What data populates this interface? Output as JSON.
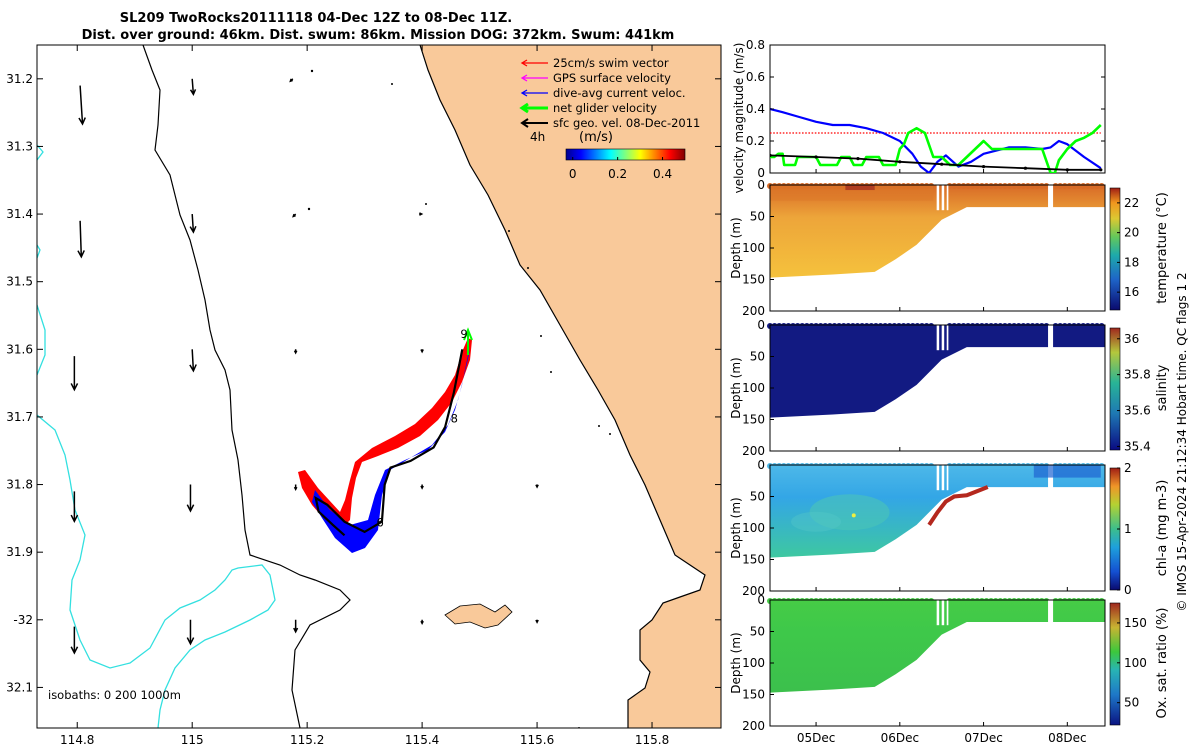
{
  "title": {
    "line1": "SL209 TwoRocks20111118 04-Dec 12Z to 08-Dec 11Z.",
    "line2": "Dist. over ground: 46km. Dist. swum: 86km. Mission DOG: 372km. Swum: 441km"
  },
  "credit": "© IMOS 15-Apr-2024 21:12:34 Hobart time. QC flags 1  2",
  "colors": {
    "land": "#f9c99a",
    "isobath_0": "#000000",
    "isobath_200": "#000000",
    "isobath_1000": "#33e0e0",
    "swim": "#ff0000",
    "gps": "#ff00ff",
    "dive_avg": "#0000ff",
    "net_glider": "#00ff00",
    "sfc_geo": "#000000"
  },
  "chart_data": [
    {
      "type": "map",
      "name": "track-map",
      "xlim": [
        114.73,
        115.92
      ],
      "ylim": [
        -32.16,
        -31.15
      ],
      "xticks": [
        114.8,
        115.0,
        115.2,
        115.4,
        115.6,
        115.8
      ],
      "xtick_labels": [
        "114.8",
        "115",
        "115.2",
        "115.4",
        "115.6",
        "115.8"
      ],
      "yticks": [
        -31.2,
        -31.3,
        -31.4,
        -31.5,
        -31.6,
        -31.7,
        -31.8,
        -31.9,
        -32.0,
        -32.1
      ],
      "ytick_labels": [
        "31.2",
        "31.3",
        "31.4",
        "31.5",
        "31.6",
        "31.7",
        "31.8",
        "31.9",
        "-32",
        "32.1"
      ],
      "legend": {
        "location": "top-right",
        "entries": [
          "25cm/s swim vector",
          "GPS surface velocity",
          "dive-avg current veloc.",
          "net glider velocity",
          "sfc geo. vel. 08-Dec-2011"
        ]
      },
      "colorbar": {
        "prefix": "4h",
        "label": "(m/s)",
        "ticks": [
          0,
          0.2,
          0.4
        ],
        "tick_labels": [
          "0",
          "0.2",
          "0.4"
        ],
        "range": [
          -0.03,
          0.5
        ]
      },
      "isobath_note": "isobaths: 0   200  1000m",
      "track": [
        [
          115.265,
          -31.875
        ],
        [
          115.245,
          -31.86
        ],
        [
          115.22,
          -31.84
        ],
        [
          115.215,
          -31.82
        ],
        [
          115.235,
          -31.83
        ],
        [
          115.265,
          -31.855
        ],
        [
          115.3,
          -31.87
        ],
        [
          115.33,
          -31.855
        ],
        [
          115.335,
          -31.8
        ],
        [
          115.345,
          -31.775
        ],
        [
          115.38,
          -31.765
        ],
        [
          115.42,
          -31.745
        ],
        [
          115.44,
          -31.715
        ],
        [
          115.455,
          -31.665
        ],
        [
          115.47,
          -31.6
        ]
      ],
      "day_labels": [
        {
          "text": "9",
          "lon": 115.473,
          "lat": -31.583
        },
        {
          "text": "8",
          "lon": 115.456,
          "lat": -31.708
        },
        {
          "text": "6",
          "lon": 115.327,
          "lat": -31.862
        }
      ],
      "geo_vectors": [
        {
          "lon": 114.805,
          "lat": -31.21,
          "u": 0.02,
          "v": -0.32
        },
        {
          "lon": 114.805,
          "lat": -31.41,
          "u": 0.01,
          "v": -0.3
        },
        {
          "lon": 114.795,
          "lat": -31.61,
          "u": 0.0,
          "v": -0.28
        },
        {
          "lon": 114.795,
          "lat": -31.81,
          "u": 0.0,
          "v": -0.25
        },
        {
          "lon": 114.795,
          "lat": -32.01,
          "u": 0.0,
          "v": -0.22
        },
        {
          "lon": 115.0,
          "lat": -31.2,
          "u": 0.01,
          "v": -0.13
        },
        {
          "lon": 115.0,
          "lat": -31.4,
          "u": 0.01,
          "v": -0.15
        },
        {
          "lon": 115.0,
          "lat": -31.6,
          "u": 0.01,
          "v": -0.18
        },
        {
          "lon": 114.997,
          "lat": -31.8,
          "u": 0.0,
          "v": -0.22
        },
        {
          "lon": 114.997,
          "lat": -32.0,
          "u": 0.0,
          "v": -0.2
        },
        {
          "lon": 115.175,
          "lat": -31.2,
          "u": -0.02,
          "v": -0.02
        },
        {
          "lon": 115.18,
          "lat": -31.4,
          "u": -0.02,
          "v": -0.02
        },
        {
          "lon": 115.18,
          "lat": -31.6,
          "u": 0.0,
          "v": -0.03
        },
        {
          "lon": 115.18,
          "lat": -31.8,
          "u": 0.0,
          "v": -0.04
        },
        {
          "lon": 115.18,
          "lat": -32.0,
          "u": 0.0,
          "v": -0.1
        },
        {
          "lon": 115.395,
          "lat": -31.4,
          "u": 0.02,
          "v": 0.0
        },
        {
          "lon": 115.4,
          "lat": -31.6,
          "u": 0.0,
          "v": -0.02
        },
        {
          "lon": 115.4,
          "lat": -31.8,
          "u": 0.0,
          "v": -0.03
        },
        {
          "lon": 115.4,
          "lat": -32.0,
          "u": 0.0,
          "v": -0.03
        },
        {
          "lon": 115.6,
          "lat": -31.8,
          "u": 0.0,
          "v": -0.02
        },
        {
          "lon": 115.6,
          "lat": -32.0,
          "u": 0.0,
          "v": -0.02
        }
      ]
    },
    {
      "type": "line",
      "name": "velocity-magnitude",
      "ylabel": "velocity magnitude (m/s)",
      "xlim": [
        4.45,
        8.45
      ],
      "ylim": [
        0,
        0.8
      ],
      "yticks": [
        0,
        0.2,
        0.4,
        0.6,
        0.8
      ],
      "ytick_labels": [
        "0",
        "0.2",
        "0.4",
        "0.6",
        "0.8"
      ],
      "series": [
        {
          "name": "swim",
          "style": "dotted",
          "x": [
            4.45,
            8.4
          ],
          "y": [
            0.25,
            0.25
          ]
        },
        {
          "name": "dive-avg current",
          "x": [
            4.45,
            4.6,
            4.8,
            5.0,
            5.2,
            5.4,
            5.6,
            5.8,
            6.0,
            6.15,
            6.25,
            6.35,
            6.45,
            6.55,
            6.7,
            6.85,
            7.0,
            7.3,
            7.5,
            7.7,
            7.8,
            7.9,
            8.0,
            8.2,
            8.4
          ],
          "y": [
            0.4,
            0.38,
            0.35,
            0.32,
            0.3,
            0.3,
            0.28,
            0.25,
            0.2,
            0.12,
            0.04,
            0.0,
            0.07,
            0.11,
            0.04,
            0.07,
            0.12,
            0.16,
            0.16,
            0.15,
            0.16,
            0.2,
            0.18,
            0.1,
            0.03
          ]
        },
        {
          "name": "net glider",
          "x": [
            4.45,
            4.5,
            4.55,
            4.6,
            4.62,
            4.75,
            4.78,
            5.0,
            5.05,
            5.25,
            5.3,
            5.4,
            5.45,
            5.55,
            5.6,
            5.75,
            5.8,
            5.95,
            6.0,
            6.05,
            6.1,
            6.2,
            6.3,
            6.4,
            6.5,
            6.6,
            6.7,
            6.8,
            6.9,
            7.0,
            7.1,
            7.3,
            7.5,
            7.7,
            7.8,
            7.85,
            7.9,
            8.0,
            8.1,
            8.2,
            8.3,
            8.4
          ],
          "y": [
            0.1,
            0.1,
            0.12,
            0.12,
            0.05,
            0.05,
            0.1,
            0.1,
            0.05,
            0.05,
            0.1,
            0.1,
            0.05,
            0.05,
            0.1,
            0.1,
            0.05,
            0.05,
            0.15,
            0.18,
            0.25,
            0.28,
            0.25,
            0.1,
            0.1,
            0.05,
            0.05,
            0.1,
            0.15,
            0.2,
            0.15,
            0.15,
            0.15,
            0.15,
            0.0,
            0.0,
            0.08,
            0.15,
            0.2,
            0.22,
            0.25,
            0.3
          ]
        },
        {
          "name": "surface geostrophic",
          "x": [
            4.45,
            5.0,
            5.5,
            6.0,
            6.5,
            7.0,
            7.5,
            8.0,
            8.4
          ],
          "y": [
            0.11,
            0.1,
            0.09,
            0.07,
            0.055,
            0.04,
            0.03,
            0.02,
            0.02
          ]
        }
      ]
    },
    {
      "type": "heatmap",
      "name": "temperature-section",
      "ylabel": "Depth (m)",
      "cblabel": "temperature (°C)",
      "xlim": [
        4.45,
        8.45
      ],
      "ylim": [
        200,
        0
      ],
      "yticks": [
        0,
        50,
        100,
        150,
        200
      ],
      "ytick_labels": [
        "0",
        "50",
        "100",
        "150",
        "200"
      ],
      "clim": [
        14.8,
        23.0
      ],
      "cticks": [
        16,
        18,
        20,
        22
      ],
      "ctick_labels": [
        "16",
        "18",
        "20",
        "22"
      ],
      "bottom_depth": [
        [
          4.45,
          147
        ],
        [
          5.2,
          142
        ],
        [
          5.7,
          138
        ],
        [
          5.95,
          118
        ],
        [
          6.2,
          95
        ],
        [
          6.5,
          55
        ],
        [
          6.8,
          35
        ],
        [
          8.45,
          35
        ]
      ],
      "surface_value": 21.5,
      "deep_value": 19.2
    },
    {
      "type": "heatmap",
      "name": "salinity-section",
      "ylabel": "Depth (m)",
      "cblabel": "salinity",
      "xlim": [
        4.45,
        8.45
      ],
      "ylim": [
        200,
        0
      ],
      "yticks": [
        0,
        50,
        100,
        150,
        200
      ],
      "ytick_labels": [
        "0",
        "50",
        "100",
        "150",
        "200"
      ],
      "clim": [
        35.38,
        36.06
      ],
      "cticks": [
        35.4,
        35.6,
        35.8,
        36
      ],
      "ctick_labels": [
        "35.4",
        "35.6",
        "35.8",
        "36"
      ],
      "bottom_depth": [
        [
          4.45,
          147
        ],
        [
          5.2,
          142
        ],
        [
          5.7,
          138
        ],
        [
          5.95,
          118
        ],
        [
          6.2,
          95
        ],
        [
          6.5,
          55
        ],
        [
          6.8,
          35
        ],
        [
          8.45,
          35
        ]
      ],
      "surface_value": 35.42,
      "deep_value": 35.42
    },
    {
      "type": "heatmap",
      "name": "chla-section",
      "ylabel": "Depth (m)",
      "cblabel": "chl-a (mg m-3)",
      "xlim": [
        4.45,
        8.45
      ],
      "ylim": [
        200,
        0
      ],
      "yticks": [
        0,
        50,
        100,
        150,
        200
      ],
      "ytick_labels": [
        "0",
        "50",
        "100",
        "150",
        "200"
      ],
      "clim": [
        0,
        2
      ],
      "cticks": [
        0,
        1,
        2
      ],
      "ctick_labels": [
        "0",
        "1",
        "2"
      ],
      "bottom_depth": [
        [
          4.45,
          147
        ],
        [
          5.2,
          142
        ],
        [
          5.7,
          138
        ],
        [
          5.95,
          118
        ],
        [
          6.2,
          95
        ],
        [
          6.5,
          55
        ],
        [
          6.8,
          35
        ],
        [
          8.45,
          35
        ]
      ],
      "surface_value": 0.35,
      "deep_value": 0.55
    },
    {
      "type": "heatmap",
      "name": "oxygen-section",
      "ylabel": "Depth (m)",
      "cblabel": "Ox. sat. ratio (%)",
      "xlim": [
        4.45,
        8.45
      ],
      "ylim": [
        200,
        0
      ],
      "yticks": [
        0,
        50,
        100,
        150,
        200
      ],
      "ytick_labels": [
        "0",
        "50",
        "100",
        "150",
        "200"
      ],
      "xticks": [
        5,
        6,
        7,
        8
      ],
      "xtick_labels": [
        "05Dec",
        "06Dec",
        "07Dec",
        "08Dec"
      ],
      "clim": [
        22,
        175
      ],
      "cticks": [
        50,
        100,
        150
      ],
      "ctick_labels": [
        "50",
        "100",
        "150"
      ],
      "bottom_depth": [
        [
          4.45,
          147
        ],
        [
          5.2,
          142
        ],
        [
          5.7,
          138
        ],
        [
          5.95,
          118
        ],
        [
          6.2,
          95
        ],
        [
          6.5,
          55
        ],
        [
          6.8,
          35
        ],
        [
          8.45,
          35
        ]
      ],
      "surface_value": 105,
      "deep_value": 103
    }
  ]
}
